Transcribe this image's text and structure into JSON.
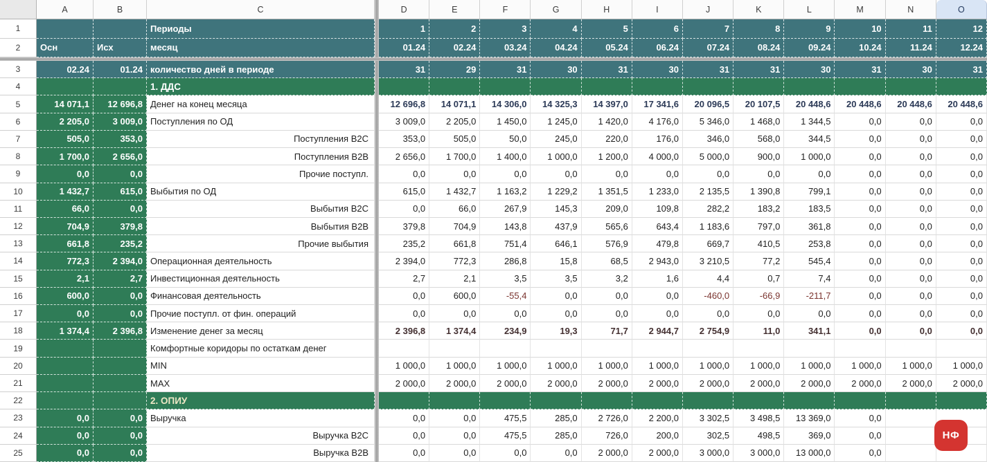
{
  "selected_column": "O",
  "columns": [
    "A",
    "B",
    "C",
    "D",
    "E",
    "F",
    "G",
    "H",
    "I",
    "J",
    "K",
    "L",
    "M",
    "N",
    "O"
  ],
  "colors": {
    "teal": "#3F747C",
    "green": "#2F7C57",
    "section1_text": "#FFFFFF",
    "section2_text": "#EDE7C5",
    "selected_header_bg": "#D9E5F5",
    "badge_red": "#D43430",
    "negative_value": "#7A332E"
  },
  "badge": {
    "label": "НФ"
  },
  "rows": [
    {
      "num": "1",
      "kind": "teal",
      "a": "",
      "b": "",
      "label": "Периоды",
      "ab_align": "left",
      "values": [
        "1",
        "2",
        "3",
        "4",
        "5",
        "6",
        "7",
        "8",
        "9",
        "10",
        "11",
        "12"
      ]
    },
    {
      "num": "2",
      "kind": "teal",
      "a": "Осн",
      "b": "Исх",
      "label": "месяц",
      "ab_align": "left",
      "values": [
        "01.24",
        "02.24",
        "03.24",
        "04.24",
        "05.24",
        "06.24",
        "07.24",
        "08.24",
        "09.24",
        "10.24",
        "11.24",
        "12.24"
      ]
    },
    {
      "num": "3",
      "kind": "teal",
      "a": "02.24",
      "b": "01.24",
      "label": "количество дней в периоде",
      "ab_align": "right",
      "values": [
        "31",
        "29",
        "31",
        "30",
        "31",
        "30",
        "31",
        "31",
        "30",
        "31",
        "30",
        "31"
      ]
    },
    {
      "num": "4",
      "kind": "section",
      "label": "1. ДДС",
      "label_color": "#FFFFFF"
    },
    {
      "num": "5",
      "kind": "data",
      "a": "14 071,1",
      "b": "12 696,8",
      "label": "Денег на конец месяца",
      "label_align": "left",
      "value_style": "emph-blue",
      "values": [
        "12 696,8",
        "14 071,1",
        "14 306,0",
        "14 325,3",
        "14 397,0",
        "17 341,6",
        "20 096,5",
        "20 107,5",
        "20 448,6",
        "20 448,6",
        "20 448,6",
        "20 448,6"
      ]
    },
    {
      "num": "6",
      "kind": "data",
      "a": "2 205,0",
      "b": "3 009,0",
      "label": "Поступления по ОД",
      "label_align": "left",
      "values": [
        "3 009,0",
        "2 205,0",
        "1 450,0",
        "1 245,0",
        "1 420,0",
        "4 176,0",
        "5 346,0",
        "1 468,0",
        "1 344,5",
        "0,0",
        "0,0",
        "0,0"
      ]
    },
    {
      "num": "7",
      "kind": "data",
      "a": "505,0",
      "b": "353,0",
      "label": "Поступления B2C",
      "label_align": "right",
      "values": [
        "353,0",
        "505,0",
        "50,0",
        "245,0",
        "220,0",
        "176,0",
        "346,0",
        "568,0",
        "344,5",
        "0,0",
        "0,0",
        "0,0"
      ]
    },
    {
      "num": "8",
      "kind": "data",
      "a": "1 700,0",
      "b": "2 656,0",
      "label": "Поступления B2B",
      "label_align": "right",
      "values": [
        "2 656,0",
        "1 700,0",
        "1 400,0",
        "1 000,0",
        "1 200,0",
        "4 000,0",
        "5 000,0",
        "900,0",
        "1 000,0",
        "0,0",
        "0,0",
        "0,0"
      ]
    },
    {
      "num": "9",
      "kind": "data",
      "a": "0,0",
      "b": "0,0",
      "label": "Прочие поступл.",
      "label_align": "right",
      "values": [
        "0,0",
        "0,0",
        "0,0",
        "0,0",
        "0,0",
        "0,0",
        "0,0",
        "0,0",
        "0,0",
        "0,0",
        "0,0",
        "0,0"
      ]
    },
    {
      "num": "10",
      "kind": "data",
      "a": "1 432,7",
      "b": "615,0",
      "label": "Выбытия по ОД",
      "label_align": "left",
      "values": [
        "615,0",
        "1 432,7",
        "1 163,2",
        "1 229,2",
        "1 351,5",
        "1 233,0",
        "2 135,5",
        "1 390,8",
        "799,1",
        "0,0",
        "0,0",
        "0,0"
      ]
    },
    {
      "num": "11",
      "kind": "data",
      "a": "66,0",
      "b": "0,0",
      "label": "Выбытия B2C",
      "label_align": "right",
      "values": [
        "0,0",
        "66,0",
        "267,9",
        "145,3",
        "209,0",
        "109,8",
        "282,2",
        "183,2",
        "183,5",
        "0,0",
        "0,0",
        "0,0"
      ]
    },
    {
      "num": "12",
      "kind": "data",
      "a": "704,9",
      "b": "379,8",
      "label": "Выбытия B2B",
      "label_align": "right",
      "values": [
        "379,8",
        "704,9",
        "143,8",
        "437,9",
        "565,6",
        "643,4",
        "1 183,6",
        "797,0",
        "361,8",
        "0,0",
        "0,0",
        "0,0"
      ]
    },
    {
      "num": "13",
      "kind": "data",
      "a": "661,8",
      "b": "235,2",
      "label": "Прочие выбытия",
      "label_align": "right",
      "values": [
        "235,2",
        "661,8",
        "751,4",
        "646,1",
        "576,9",
        "479,8",
        "669,7",
        "410,5",
        "253,8",
        "0,0",
        "0,0",
        "0,0"
      ]
    },
    {
      "num": "14",
      "kind": "data",
      "a": "772,3",
      "b": "2 394,0",
      "label": "Операционная деятельность",
      "label_align": "left",
      "values": [
        "2 394,0",
        "772,3",
        "286,8",
        "15,8",
        "68,5",
        "2 943,0",
        "3 210,5",
        "77,2",
        "545,4",
        "0,0",
        "0,0",
        "0,0"
      ]
    },
    {
      "num": "15",
      "kind": "data",
      "a": "2,1",
      "b": "2,7",
      "label": "Инвестиционная деятельность",
      "label_align": "left",
      "values": [
        "2,7",
        "2,1",
        "3,5",
        "3,5",
        "3,2",
        "1,6",
        "4,4",
        "0,7",
        "7,4",
        "0,0",
        "0,0",
        "0,0"
      ]
    },
    {
      "num": "16",
      "kind": "data",
      "a": "600,0",
      "b": "0,0",
      "label": "Финансовая деятельность",
      "label_align": "left",
      "values": [
        "0,0",
        "600,0",
        "-55,4",
        "0,0",
        "0,0",
        "0,0",
        "-460,0",
        "-66,9",
        "-211,7",
        "0,0",
        "0,0",
        "0,0"
      ]
    },
    {
      "num": "17",
      "kind": "data",
      "a": "0,0",
      "b": "0,0",
      "label": "Прочие поступл. от фин. операций",
      "label_align": "left",
      "values": [
        "0,0",
        "0,0",
        "0,0",
        "0,0",
        "0,0",
        "0,0",
        "0,0",
        "0,0",
        "0,0",
        "0,0",
        "0,0",
        "0,0"
      ]
    },
    {
      "num": "18",
      "kind": "data",
      "a": "1 374,4",
      "b": "2 396,8",
      "label": "Изменение денег за месяц",
      "label_align": "left",
      "value_style": "emph-warm",
      "values": [
        "2 396,8",
        "1 374,4",
        "234,9",
        "19,3",
        "71,7",
        "2 944,7",
        "2 754,9",
        "11,0",
        "341,1",
        "0,0",
        "0,0",
        "0,0"
      ]
    },
    {
      "num": "19",
      "kind": "data",
      "a": "",
      "b": "",
      "label": "Комфортные коридоры по остаткам денег",
      "label_align": "left",
      "values": [
        "",
        "",
        "",
        "",
        "",
        "",
        "",
        "",
        "",
        "",
        "",
        ""
      ]
    },
    {
      "num": "20",
      "kind": "data",
      "a": "",
      "b": "",
      "label": "MIN",
      "label_align": "left",
      "values": [
        "1 000,0",
        "1 000,0",
        "1 000,0",
        "1 000,0",
        "1 000,0",
        "1 000,0",
        "1 000,0",
        "1 000,0",
        "1 000,0",
        "1 000,0",
        "1 000,0",
        "1 000,0"
      ]
    },
    {
      "num": "21",
      "kind": "data",
      "a": "",
      "b": "",
      "label": "MAX",
      "label_align": "left",
      "values": [
        "2 000,0",
        "2 000,0",
        "2 000,0",
        "2 000,0",
        "2 000,0",
        "2 000,0",
        "2 000,0",
        "2 000,0",
        "2 000,0",
        "2 000,0",
        "2 000,0",
        "2 000,0"
      ]
    },
    {
      "num": "22",
      "kind": "section",
      "label": "2. ОПИУ",
      "label_color": "#EDE7C5"
    },
    {
      "num": "23",
      "kind": "data",
      "a": "0,0",
      "b": "0,0",
      "label": "Выручка",
      "label_align": "left",
      "values": [
        "0,0",
        "0,0",
        "475,5",
        "285,0",
        "2 726,0",
        "2 200,0",
        "3 302,5",
        "3 498,5",
        "13 369,0",
        "0,0",
        "",
        ""
      ]
    },
    {
      "num": "24",
      "kind": "data",
      "a": "0,0",
      "b": "0,0",
      "label": "Выручка B2C",
      "label_align": "right",
      "values": [
        "0,0",
        "0,0",
        "475,5",
        "285,0",
        "726,0",
        "200,0",
        "302,5",
        "498,5",
        "369,0",
        "0,0",
        "",
        ""
      ]
    },
    {
      "num": "25",
      "kind": "data",
      "a": "0,0",
      "b": "0,0",
      "label": "Выручка B2B",
      "label_align": "right",
      "values": [
        "0,0",
        "0,0",
        "0,0",
        "0,0",
        "2 000,0",
        "2 000,0",
        "3 000,0",
        "3 000,0",
        "13 000,0",
        "0,0",
        "",
        ""
      ]
    }
  ]
}
